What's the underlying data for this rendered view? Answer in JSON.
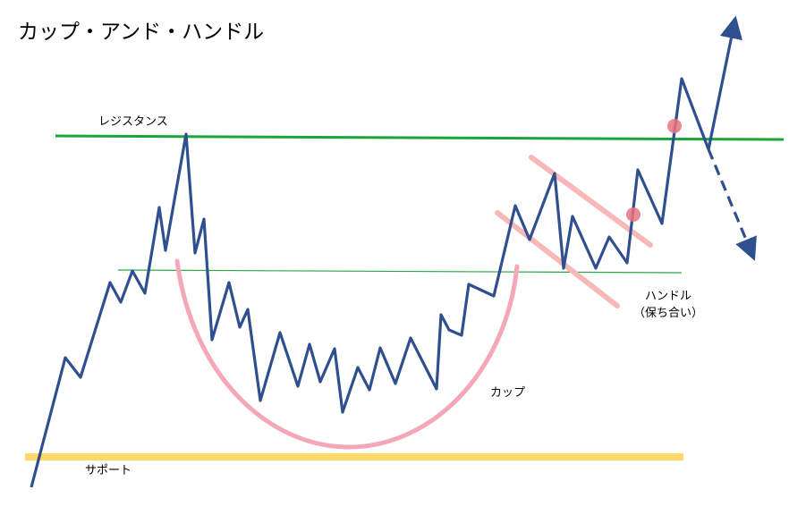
{
  "title": "カップ・アンド・ハンドル",
  "labels": {
    "resistance": "レジスタンス",
    "support": "サポート",
    "cup": "カップ",
    "handle": "ハンドル",
    "handle_sub": "（保ち合い）"
  },
  "colors": {
    "price_line": "#2f4f8f",
    "resistance_line": "#1aa63a",
    "neckline": "#27a845",
    "support_line": "#ffd966",
    "cup_curve": "#f4a7b9",
    "handle_channel": "#f8b8b8",
    "signal_dot": "#e8737f"
  }
}
